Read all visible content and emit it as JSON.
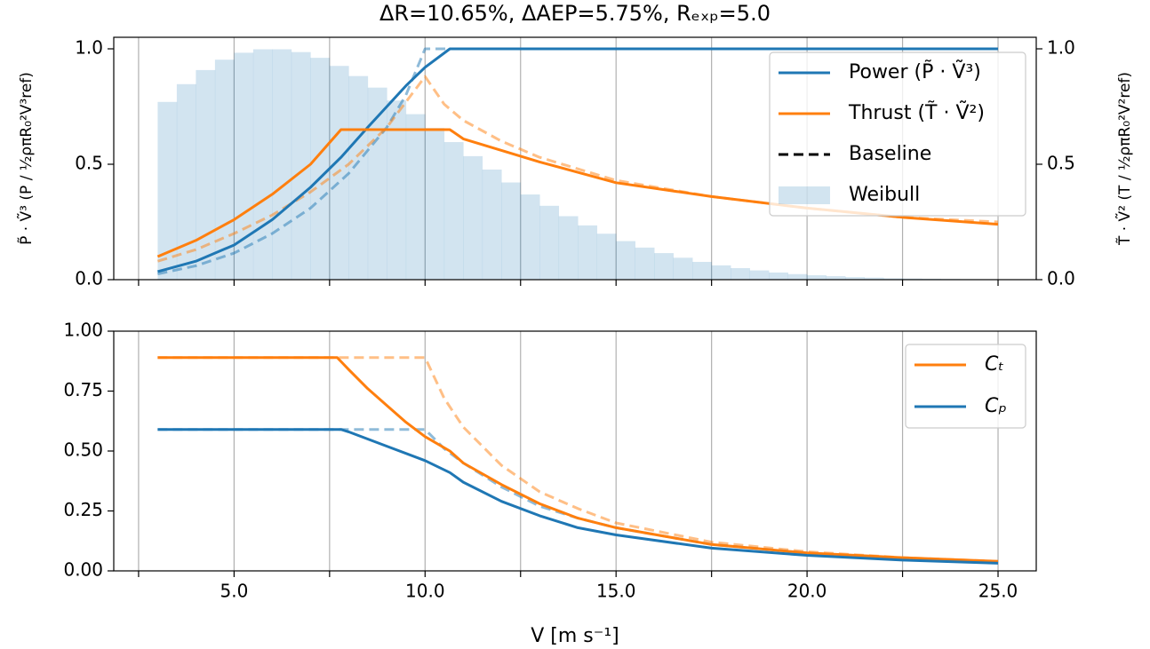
{
  "chart_data": [
    {
      "type": "line",
      "title": "ΔR=10.65%, ΔAEP=5.75%, Rₑₓₚ=5.0",
      "ylabel": "P̃ · Ṽ³  (P / ½ρπR₀²V³ref)",
      "y2label": "T̃ · Ṽ²  (T / ½ρπR₀²V²ref)",
      "ycolor": "#1f77b4",
      "y2color": "#ff7f0e",
      "xlim": [
        1.85,
        26.0
      ],
      "xticks": [
        5,
        10,
        15,
        20,
        25
      ],
      "x_minor_ticks": [
        2.5,
        7.5,
        12.5,
        17.5,
        22.5
      ],
      "show_x_tick_labels": false,
      "ylim": [
        0,
        1.05
      ],
      "yticks": [
        {
          "value": 0,
          "label": "0.0"
        },
        {
          "value": 0.5,
          "label": "0.5"
        },
        {
          "value": 1,
          "label": "1.0"
        }
      ],
      "y2lim": [
        0,
        1.05
      ],
      "y2ticks": [
        {
          "value": 0,
          "label": "0.0"
        },
        {
          "value": 0.5,
          "label": "0.5"
        },
        {
          "value": 1,
          "label": "1.0"
        }
      ],
      "grid": true,
      "legend": "upper right",
      "series": [
        {
          "name": "Power (P̃ · Ṽ³)",
          "color": "#1f77b4",
          "style": "solid",
          "x": [
            3,
            4,
            5,
            6,
            7,
            7.8,
            8.5,
            9,
            9.5,
            10,
            10.65,
            25
          ],
          "values": [
            0.035,
            0.08,
            0.15,
            0.26,
            0.4,
            0.53,
            0.66,
            0.75,
            0.84,
            0.92,
            1.0,
            1.0
          ]
        },
        {
          "name": "Thrust (T̃ · Ṽ²)",
          "color": "#ff7f0e",
          "style": "solid",
          "axis": "y2",
          "x": [
            3,
            4,
            5,
            6,
            7,
            7.8,
            10.65,
            11,
            12,
            13,
            15,
            17.5,
            20,
            22.5,
            25
          ],
          "values": [
            0.1,
            0.17,
            0.26,
            0.37,
            0.5,
            0.65,
            0.65,
            0.61,
            0.56,
            0.51,
            0.42,
            0.36,
            0.31,
            0.27,
            0.24
          ]
        },
        {
          "color": "#1f77b4",
          "style": "dashed",
          "alpha": 0.5,
          "x": [
            3,
            4,
            5,
            6,
            7,
            8,
            9,
            9.5,
            10,
            25
          ],
          "values": [
            0.025,
            0.06,
            0.115,
            0.2,
            0.31,
            0.46,
            0.66,
            0.8,
            1.0,
            1.0
          ]
        },
        {
          "color": "#ff7f0e",
          "style": "dashed",
          "alpha": 0.5,
          "axis": "y2",
          "x": [
            3,
            4,
            5,
            6,
            7,
            8,
            9,
            10,
            10.5,
            11,
            12,
            13,
            15,
            17.5,
            20,
            22.5,
            25
          ],
          "values": [
            0.08,
            0.13,
            0.2,
            0.28,
            0.38,
            0.5,
            0.66,
            0.88,
            0.76,
            0.69,
            0.6,
            0.53,
            0.43,
            0.36,
            0.31,
            0.27,
            0.25
          ]
        }
      ],
      "baseline_label": "Baseline",
      "histogram": {
        "name": "Weibull",
        "color": "#1f77b4",
        "alpha": 0.2,
        "bins": [
          3,
          3.5,
          4,
          4.5,
          5,
          5.5,
          6,
          6.5,
          7,
          7.5,
          8,
          8.5,
          9,
          9.5,
          10,
          10.5,
          11,
          11.5,
          12,
          12.5,
          13,
          13.5,
          14,
          14.5,
          15,
          15.5,
          16,
          16.5,
          17,
          17.5,
          18,
          18.5,
          19,
          19.5,
          20,
          20.5,
          21,
          21.5,
          22,
          22.5,
          23,
          23.5,
          24,
          24.5,
          25
        ],
        "counts": [
          0.77,
          0.847,
          0.908,
          0.953,
          0.983,
          0.998,
          0.998,
          0.986,
          0.961,
          0.926,
          0.882,
          0.832,
          0.776,
          0.717,
          0.657,
          0.596,
          0.535,
          0.477,
          0.421,
          0.369,
          0.32,
          0.275,
          0.235,
          0.199,
          0.167,
          0.139,
          0.115,
          0.095,
          0.077,
          0.062,
          0.05,
          0.04,
          0.031,
          0.024,
          0.019,
          0.015,
          0.011,
          0.009,
          0.006,
          0.005,
          0.004,
          0.003,
          0.002,
          0.001
        ]
      }
    },
    {
      "type": "line",
      "xlabel": "V [m s⁻¹]",
      "xlim": [
        1.85,
        26.0
      ],
      "xticks": [
        {
          "value": 5,
          "label": "5.0"
        },
        {
          "value": 10,
          "label": "10.0"
        },
        {
          "value": 15,
          "label": "15.0"
        },
        {
          "value": 20,
          "label": "20.0"
        },
        {
          "value": 25,
          "label": "25.0"
        }
      ],
      "x_minor_ticks": [
        2.5,
        7.5,
        12.5,
        17.5,
        22.5
      ],
      "show_x_tick_labels": true,
      "ylim": [
        0,
        1
      ],
      "yticks": [
        {
          "value": 0,
          "label": "0.00"
        },
        {
          "value": 0.25,
          "label": "0.25"
        },
        {
          "value": 0.5,
          "label": "0.50"
        },
        {
          "value": 0.75,
          "label": "0.75"
        },
        {
          "value": 1,
          "label": "1.00"
        }
      ],
      "ycolor": "#000000",
      "grid": true,
      "legend": "upper right",
      "series": [
        {
          "name": "Cₜ",
          "color": "#ff7f0e",
          "style": "solid",
          "x": [
            3,
            7.7,
            8,
            8.5,
            9,
            9.5,
            10,
            10.65,
            11,
            12,
            13,
            14,
            15,
            17.5,
            20,
            22.5,
            25
          ],
          "values": [
            0.89,
            0.89,
            0.84,
            0.76,
            0.69,
            0.62,
            0.56,
            0.5,
            0.45,
            0.36,
            0.28,
            0.22,
            0.18,
            0.11,
            0.075,
            0.055,
            0.04
          ]
        },
        {
          "name": "Cₚ",
          "color": "#1f77b4",
          "style": "solid",
          "x": [
            3,
            7.8,
            8,
            9,
            10,
            10.65,
            11,
            12,
            13,
            14,
            15,
            17.5,
            20,
            22.5,
            25
          ],
          "values": [
            0.59,
            0.59,
            0.58,
            0.52,
            0.46,
            0.41,
            0.37,
            0.29,
            0.23,
            0.18,
            0.15,
            0.095,
            0.065,
            0.045,
            0.032
          ]
        },
        {
          "color": "#ff7f0e",
          "style": "dashed",
          "alpha": 0.5,
          "x": [
            3,
            10,
            10.5,
            11,
            12,
            13,
            14,
            15,
            17.5,
            20,
            22.5,
            25
          ],
          "values": [
            0.89,
            0.89,
            0.72,
            0.6,
            0.44,
            0.33,
            0.26,
            0.2,
            0.12,
            0.08,
            0.055,
            0.04
          ]
        },
        {
          "color": "#1f77b4",
          "style": "dashed",
          "alpha": 0.5,
          "x": [
            3,
            10,
            10.5,
            11,
            12,
            13,
            14,
            15,
            17.5,
            20,
            22.5,
            25
          ],
          "values": [
            0.59,
            0.59,
            0.51,
            0.45,
            0.35,
            0.27,
            0.22,
            0.18,
            0.11,
            0.075,
            0.05,
            0.035
          ]
        }
      ]
    }
  ]
}
